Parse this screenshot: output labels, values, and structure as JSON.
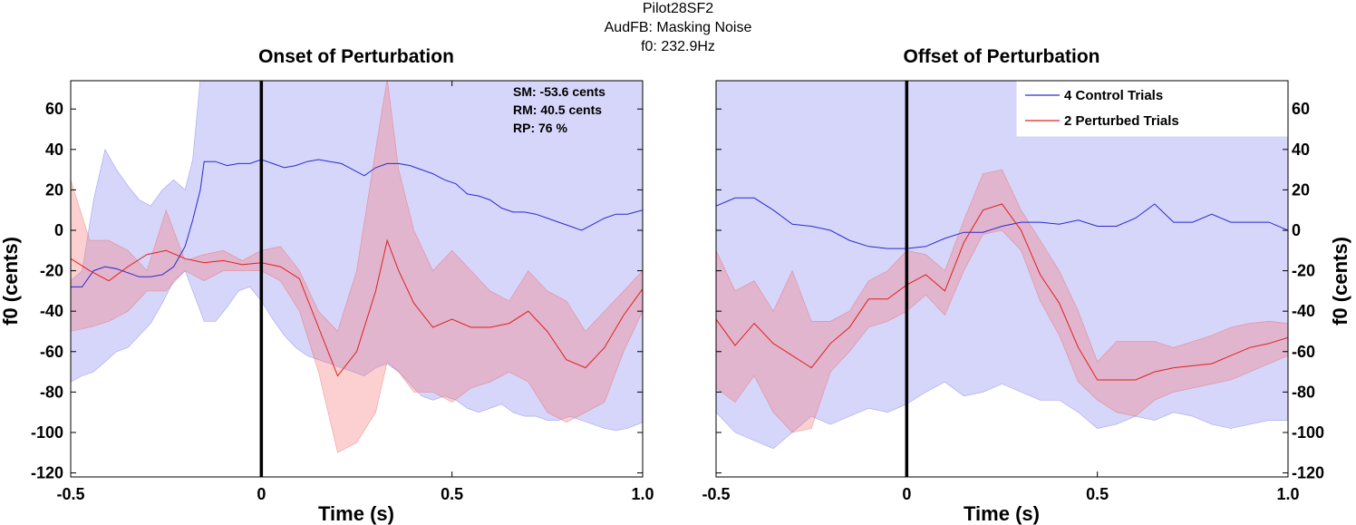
{
  "figure": {
    "title_lines": [
      "Pilot28SF2",
      "AudFB: Masking Noise",
      "f0: 232.9Hz"
    ]
  },
  "stats": [
    "SM: -53.6 cents",
    "RM: 40.5 cents",
    "RP: 76 %"
  ],
  "colors": {
    "control_line": "#2a2ad0",
    "control_band": "#d6d6fa",
    "perturbed_line": "#e02020",
    "perturbed_band": "rgba(245,120,120,0.35)",
    "marker": "#000000"
  },
  "chart_data": [
    {
      "type": "line",
      "title": "Onset of Perturbation",
      "xlabel": "Time (s)",
      "ylabel": "f0 (cents)",
      "ylabel_side": "left",
      "xlim": [
        -0.5,
        1.0
      ],
      "ylim": [
        -122,
        74
      ],
      "xticks": [
        -0.5,
        0,
        0.5,
        1.0
      ],
      "xtick_labels": [
        "-0.5",
        "0",
        "0.5",
        "1.0"
      ],
      "yticks": [
        -120,
        -100,
        -80,
        -60,
        -40,
        -20,
        0,
        20,
        40,
        60
      ],
      "yticks_side": "left",
      "marker_x": 0,
      "grid": false,
      "series": [
        {
          "name": "Control",
          "x": [
            -0.5,
            -0.47,
            -0.44,
            -0.41,
            -0.38,
            -0.35,
            -0.32,
            -0.29,
            -0.26,
            -0.23,
            -0.2,
            -0.18,
            -0.16,
            -0.15,
            -0.12,
            -0.09,
            -0.06,
            -0.03,
            0.0,
            0.03,
            0.06,
            0.09,
            0.12,
            0.15,
            0.18,
            0.21,
            0.24,
            0.27,
            0.3,
            0.33,
            0.36,
            0.39,
            0.42,
            0.45,
            0.48,
            0.51,
            0.54,
            0.57,
            0.6,
            0.63,
            0.66,
            0.69,
            0.72,
            0.75,
            0.78,
            0.81,
            0.84,
            0.87,
            0.9,
            0.93,
            0.96,
            1.0
          ],
          "y": [
            -28,
            -28,
            -20,
            -18,
            -19,
            -21,
            -23,
            -23,
            -22,
            -18,
            -8,
            5,
            20,
            34,
            34,
            32,
            33,
            33,
            35,
            33,
            31,
            32,
            34,
            35,
            34,
            33,
            30,
            27,
            31,
            33,
            33,
            32,
            30,
            28,
            25,
            23,
            18,
            17,
            15,
            11,
            9,
            9,
            8,
            6,
            4,
            2,
            0,
            3,
            6,
            8,
            8,
            10
          ],
          "upper": [
            -25,
            -20,
            15,
            40,
            30,
            22,
            15,
            12,
            20,
            25,
            20,
            35,
            75,
            110,
            110,
            110,
            110,
            110,
            110,
            110,
            110,
            110,
            110,
            110,
            110,
            110,
            110,
            110,
            110,
            110,
            110,
            110,
            110,
            110,
            110,
            110,
            110,
            110,
            110,
            110,
            110,
            110,
            110,
            110,
            110,
            110,
            110,
            110,
            110,
            110,
            110,
            110
          ],
          "lower": [
            -75,
            -72,
            -70,
            -65,
            -60,
            -58,
            -52,
            -46,
            -36,
            -25,
            -20,
            -30,
            -40,
            -45,
            -45,
            -38,
            -30,
            -28,
            -35,
            -44,
            -52,
            -58,
            -62,
            -64,
            -66,
            -68,
            -70,
            -72,
            -68,
            -66,
            -70,
            -76,
            -82,
            -84,
            -82,
            -84,
            -88,
            -90,
            -88,
            -86,
            -90,
            -92,
            -92,
            -94,
            -94,
            -92,
            -94,
            -96,
            -98,
            -99,
            -98,
            -95
          ]
        },
        {
          "name": "Perturbed",
          "x": [
            -0.5,
            -0.45,
            -0.4,
            -0.35,
            -0.3,
            -0.25,
            -0.2,
            -0.15,
            -0.1,
            -0.05,
            0.0,
            0.05,
            0.1,
            0.15,
            0.2,
            0.25,
            0.3,
            0.33,
            0.36,
            0.4,
            0.45,
            0.5,
            0.55,
            0.6,
            0.65,
            0.7,
            0.75,
            0.8,
            0.85,
            0.9,
            0.95,
            1.0
          ],
          "y": [
            -14,
            -20,
            -25,
            -18,
            -12,
            -10,
            -14,
            -16,
            -15,
            -17,
            -16,
            -18,
            -24,
            -48,
            -72,
            -60,
            -30,
            -5,
            -20,
            -36,
            -48,
            -44,
            -48,
            -48,
            -46,
            -40,
            -50,
            -64,
            -68,
            -58,
            -42,
            -29
          ],
          "upper": [
            25,
            -5,
            -5,
            -10,
            -20,
            10,
            -15,
            -12,
            -10,
            -15,
            -10,
            -8,
            -20,
            -40,
            -50,
            -20,
            40,
            75,
            30,
            0,
            -20,
            -10,
            -20,
            -30,
            -35,
            -20,
            -30,
            -35,
            -50,
            -40,
            -30,
            -20
          ],
          "lower": [
            -50,
            -48,
            -45,
            -40,
            -30,
            -30,
            -20,
            -25,
            -20,
            -20,
            -20,
            -25,
            -40,
            -70,
            -110,
            -105,
            -90,
            -65,
            -70,
            -80,
            -80,
            -85,
            -78,
            -75,
            -70,
            -75,
            -90,
            -95,
            -90,
            -85,
            -60,
            -40
          ]
        }
      ]
    },
    {
      "type": "line",
      "title": "Offset of Perturbation",
      "xlabel": "Time (s)",
      "ylabel": "f0 (cents)",
      "ylabel_side": "right",
      "xlim": [
        -0.5,
        1.0
      ],
      "ylim": [
        -122,
        74
      ],
      "xticks": [
        -0.5,
        0,
        0.5,
        1.0
      ],
      "xtick_labels": [
        "-0.5",
        "0",
        "0.5",
        "1.0"
      ],
      "yticks": [
        -120,
        -100,
        -80,
        -60,
        -40,
        -20,
        0,
        20,
        40,
        60
      ],
      "yticks_side": "right",
      "marker_x": 0,
      "grid": false,
      "legend": {
        "position": "top-right",
        "entries": [
          "4 Control Trials",
          "2 Perturbed Trials"
        ]
      },
      "series": [
        {
          "name": "4 Control Trials",
          "x": [
            -0.5,
            -0.45,
            -0.4,
            -0.35,
            -0.3,
            -0.25,
            -0.2,
            -0.15,
            -0.1,
            -0.05,
            0.0,
            0.05,
            0.1,
            0.15,
            0.2,
            0.25,
            0.3,
            0.35,
            0.4,
            0.45,
            0.5,
            0.55,
            0.6,
            0.65,
            0.7,
            0.75,
            0.8,
            0.85,
            0.9,
            0.95,
            1.0
          ],
          "y": [
            12,
            16,
            16,
            10,
            3,
            2,
            0,
            -5,
            -8,
            -9,
            -9,
            -8,
            -4,
            -1,
            -1,
            2,
            4,
            4,
            3,
            5,
            2,
            2,
            6,
            13,
            4,
            4,
            8,
            4,
            4,
            4,
            0
          ],
          "upper": [
            110,
            110,
            110,
            110,
            110,
            110,
            110,
            110,
            110,
            110,
            110,
            110,
            110,
            110,
            110,
            110,
            110,
            110,
            110,
            110,
            110,
            110,
            110,
            110,
            110,
            110,
            110,
            110,
            110,
            110,
            110
          ],
          "lower": [
            -90,
            -100,
            -104,
            -108,
            -100,
            -92,
            -96,
            -92,
            -88,
            -90,
            -86,
            -80,
            -75,
            -82,
            -80,
            -76,
            -80,
            -84,
            -84,
            -90,
            -98,
            -96,
            -92,
            -94,
            -90,
            -92,
            -96,
            -98,
            -96,
            -94,
            -94
          ]
        },
        {
          "name": "2 Perturbed Trials",
          "x": [
            -0.5,
            -0.45,
            -0.4,
            -0.35,
            -0.3,
            -0.25,
            -0.2,
            -0.15,
            -0.1,
            -0.05,
            0.0,
            0.05,
            0.1,
            0.15,
            0.2,
            0.25,
            0.3,
            0.35,
            0.4,
            0.45,
            0.5,
            0.55,
            0.6,
            0.65,
            0.7,
            0.75,
            0.8,
            0.85,
            0.9,
            0.95,
            1.0
          ],
          "y": [
            -44,
            -57,
            -46,
            -56,
            -62,
            -68,
            -56,
            -48,
            -34,
            -34,
            -27,
            -22,
            -30,
            -6,
            10,
            13,
            0,
            -22,
            -36,
            -58,
            -74,
            -74,
            -74,
            -70,
            -68,
            -67,
            -66,
            -62,
            -58,
            -56,
            -53
          ],
          "upper": [
            -10,
            -30,
            -25,
            -40,
            -20,
            -45,
            -45,
            -40,
            -25,
            -20,
            -10,
            -12,
            -20,
            5,
            28,
            30,
            10,
            -5,
            -20,
            -40,
            -65,
            -55,
            -55,
            -55,
            -58,
            -55,
            -52,
            -48,
            -46,
            -45,
            -46
          ],
          "lower": [
            -78,
            -85,
            -72,
            -90,
            -100,
            -98,
            -70,
            -60,
            -48,
            -45,
            -40,
            -32,
            -42,
            -20,
            -2,
            0,
            -10,
            -35,
            -52,
            -75,
            -84,
            -90,
            -92,
            -84,
            -80,
            -78,
            -76,
            -74,
            -70,
            -66,
            -62
          ]
        }
      ]
    }
  ]
}
